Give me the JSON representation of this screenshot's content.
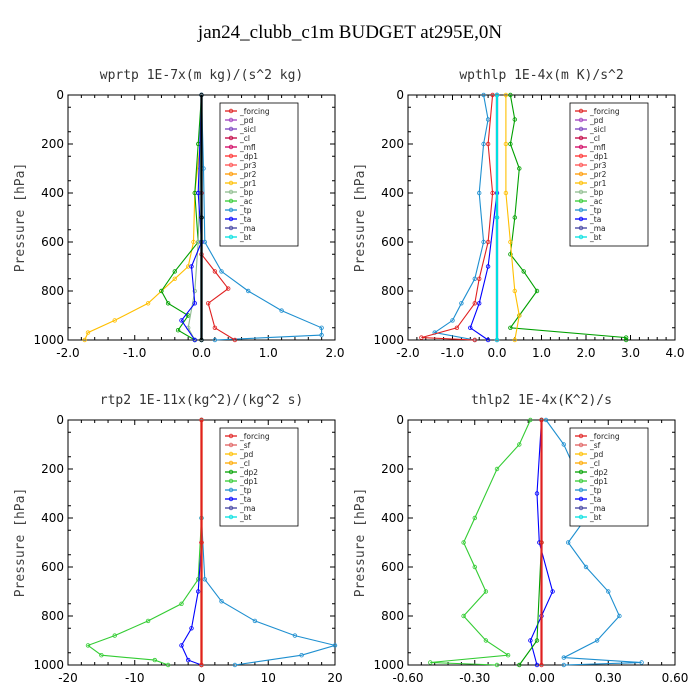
{
  "figure_title": "jan24_clubb_c1m  BUDGET at295E,0N",
  "chart_data": [
    {
      "type": "line",
      "title": "wprtp  1E-7x(m kg)/(s^2 kg)",
      "ylabel": "Pressure [hPa]",
      "xlabel": "",
      "xlim": [
        -2.0,
        2.0
      ],
      "ylim": [
        1000,
        0
      ],
      "xticks": [
        "-2.0",
        "-1.0",
        "0.0",
        "1.0",
        "2.0"
      ],
      "yticks": [
        "0",
        "200",
        "400",
        "600",
        "800",
        "1000"
      ],
      "legend": [
        "_forcing",
        "_pd",
        "_sicl",
        "_cl",
        "_mfl",
        "_dp1",
        "_pr3",
        "_pr2",
        "_pr1",
        "_bp",
        "_ac",
        "_tp",
        "_ta",
        "_ma",
        "_bt"
      ],
      "series": [
        {
          "name": "_pr1",
          "color": "#ffbf00",
          "points": [
            [
              0,
              0
            ],
            [
              -0.02,
              200
            ],
            [
              -0.1,
              400
            ],
            [
              -0.12,
              600
            ],
            [
              -0.2,
              700
            ],
            [
              -0.4,
              750
            ],
            [
              -0.8,
              850
            ],
            [
              -1.3,
              920
            ],
            [
              -1.7,
              970
            ],
            [
              -1.75,
              1000
            ]
          ]
        },
        {
          "name": "_ac",
          "color": "#00a000",
          "points": [
            [
              0,
              0
            ],
            [
              -0.05,
              200
            ],
            [
              -0.1,
              400
            ],
            [
              -0.05,
              600
            ],
            [
              -0.4,
              720
            ],
            [
              -0.6,
              800
            ],
            [
              -0.5,
              850
            ],
            [
              -0.2,
              900
            ],
            [
              -0.35,
              960
            ],
            [
              -0.1,
              1000
            ]
          ]
        },
        {
          "name": "_bp",
          "color": "#8fbc8f",
          "points": [
            [
              0,
              0
            ],
            [
              -0.02,
              300
            ],
            [
              -0.05,
              600
            ],
            [
              -0.1,
              800
            ],
            [
              -0.2,
              950
            ],
            [
              -0.1,
              1000
            ]
          ]
        },
        {
          "name": "_tp",
          "color": "#1e8fd0",
          "points": [
            [
              0,
              0
            ],
            [
              0.03,
              300
            ],
            [
              0.05,
              600
            ],
            [
              0.3,
              720
            ],
            [
              0.7,
              800
            ],
            [
              1.2,
              880
            ],
            [
              1.8,
              950
            ],
            [
              1.8,
              980
            ],
            [
              0.2,
              1000
            ]
          ]
        },
        {
          "name": "_dp1",
          "color": "#e02020",
          "points": [
            [
              0,
              0
            ],
            [
              0,
              400
            ],
            [
              0,
              650
            ],
            [
              0.2,
              720
            ],
            [
              0.4,
              790
            ],
            [
              0.1,
              850
            ],
            [
              0.2,
              950
            ],
            [
              0.5,
              1000
            ]
          ]
        },
        {
          "name": "_ta",
          "color": "#0000ff",
          "points": [
            [
              0,
              0
            ],
            [
              -0.05,
              400
            ],
            [
              0,
              600
            ],
            [
              -0.15,
              700
            ],
            [
              -0.1,
              850
            ],
            [
              -0.3,
              920
            ],
            [
              -0.1,
              1000
            ]
          ]
        },
        {
          "name": "_pd",
          "color": "#c0a0e0",
          "points": [
            [
              0,
              0
            ],
            [
              0,
              500
            ],
            [
              0,
              1000
            ]
          ]
        },
        {
          "name": "_bt",
          "color": "#00e0e0",
          "points": [
            [
              0,
              0
            ],
            [
              0,
              500
            ],
            [
              0,
              1000
            ]
          ]
        },
        {
          "name": "_forcing",
          "color": "#000000",
          "points": [
            [
              0,
              0
            ],
            [
              0,
              500
            ],
            [
              0,
              1000
            ]
          ]
        }
      ]
    },
    {
      "type": "line",
      "title": "wpthlp  1E-4x(m K)/s^2",
      "ylabel": "Pressure [hPa]",
      "xlabel": "",
      "xlim": [
        -2.0,
        4.0
      ],
      "ylim": [
        1000,
        0
      ],
      "xticks": [
        "-2.0",
        "-1.0",
        "0.0",
        "1.0",
        "2.0",
        "3.0",
        "4.0"
      ],
      "yticks": [
        "0",
        "200",
        "400",
        "600",
        "800",
        "1000"
      ],
      "legend": [
        "_forcing",
        "_pd",
        "_sicl",
        "_cl",
        "_mfl",
        "_dp1",
        "_pr3",
        "_pr2",
        "_pr1",
        "_bp",
        "_ac",
        "_tp",
        "_ta",
        "_ma",
        "_bt"
      ],
      "series": [
        {
          "name": "_tp",
          "color": "#1e8fd0",
          "points": [
            [
              -0.3,
              0
            ],
            [
              -0.2,
              100
            ],
            [
              -0.3,
              200
            ],
            [
              -0.4,
              400
            ],
            [
              -0.3,
              600
            ],
            [
              -0.5,
              750
            ],
            [
              -0.8,
              850
            ],
            [
              -1.0,
              920
            ],
            [
              -1.4,
              970
            ],
            [
              -0.5,
              1000
            ]
          ]
        },
        {
          "name": "_dp1",
          "color": "#e02020",
          "points": [
            [
              -0.1,
              0
            ],
            [
              -0.2,
              200
            ],
            [
              -0.1,
              400
            ],
            [
              -0.2,
              600
            ],
            [
              -0.4,
              750
            ],
            [
              -0.5,
              850
            ],
            [
              -0.9,
              950
            ],
            [
              -1.7,
              990
            ],
            [
              -0.5,
              1000
            ]
          ]
        },
        {
          "name": "_ac",
          "color": "#00a000",
          "points": [
            [
              0.3,
              0
            ],
            [
              0.4,
              100
            ],
            [
              0.3,
              200
            ],
            [
              0.5,
              300
            ],
            [
              0.4,
              500
            ],
            [
              0.3,
              650
            ],
            [
              0.6,
              720
            ],
            [
              0.9,
              800
            ],
            [
              0.5,
              900
            ],
            [
              0.3,
              950
            ],
            [
              2.9,
              990
            ],
            [
              2.9,
              1000
            ]
          ]
        },
        {
          "name": "_pr1",
          "color": "#ffbf00",
          "points": [
            [
              0.2,
              0
            ],
            [
              0.2,
              200
            ],
            [
              0.2,
              400
            ],
            [
              0.3,
              600
            ],
            [
              0.4,
              800
            ],
            [
              0.5,
              900
            ],
            [
              0.4,
              1000
            ]
          ]
        },
        {
          "name": "_ta",
          "color": "#0000ff",
          "points": [
            [
              0,
              0
            ],
            [
              0,
              400
            ],
            [
              -0.2,
              700
            ],
            [
              -0.4,
              850
            ],
            [
              -0.6,
              950
            ],
            [
              -0.2,
              1000
            ]
          ]
        },
        {
          "name": "_pd",
          "color": "#c0a0e0",
          "points": [
            [
              0,
              0
            ],
            [
              0,
              500
            ],
            [
              0,
              1000
            ]
          ]
        },
        {
          "name": "_forcing",
          "color": "#a040c0",
          "points": [
            [
              0,
              0
            ],
            [
              0,
              500
            ],
            [
              0,
              1000
            ]
          ]
        },
        {
          "name": "_bt",
          "color": "#00e0e0",
          "points": [
            [
              0,
              0
            ],
            [
              0,
              500
            ],
            [
              0,
              1000
            ]
          ]
        }
      ]
    },
    {
      "type": "line",
      "title": "rtp2  1E-11x(kg^2)/(kg^2 s)",
      "ylabel": "Pressure [hPa]",
      "xlabel": "",
      "xlim": [
        -20,
        20
      ],
      "ylim": [
        1000,
        0
      ],
      "xticks": [
        "-20",
        "-10",
        "0",
        "10",
        "20"
      ],
      "yticks": [
        "0",
        "200",
        "400",
        "600",
        "800",
        "1000"
      ],
      "legend": [
        "_forcing",
        "_sf",
        "_pd",
        "_cl",
        "_dp2",
        "_dp1",
        "_tp",
        "_ta",
        "_ma",
        "_bt"
      ],
      "series": [
        {
          "name": "_dp1",
          "color": "#33cc33",
          "points": [
            [
              0,
              0
            ],
            [
              0,
              400
            ],
            [
              -0.5,
              650
            ],
            [
              -3,
              750
            ],
            [
              -8,
              820
            ],
            [
              -13,
              880
            ],
            [
              -17,
              920
            ],
            [
              -15,
              960
            ],
            [
              -7,
              980
            ],
            [
              -5,
              1000
            ]
          ]
        },
        {
          "name": "_tp",
          "color": "#1e8fd0",
          "points": [
            [
              0,
              0
            ],
            [
              0,
              400
            ],
            [
              0.5,
              650
            ],
            [
              3,
              740
            ],
            [
              8,
              820
            ],
            [
              14,
              880
            ],
            [
              20,
              920
            ],
            [
              15,
              960
            ],
            [
              5,
              1000
            ]
          ]
        },
        {
          "name": "_ta",
          "color": "#0000ff",
          "points": [
            [
              0,
              0
            ],
            [
              0,
              500
            ],
            [
              -0.5,
              700
            ],
            [
              -1.5,
              850
            ],
            [
              -3,
              920
            ],
            [
              -2,
              980
            ],
            [
              0,
              1000
            ]
          ]
        },
        {
          "name": "_pd",
          "color": "#ffbf00",
          "points": [
            [
              0,
              0
            ],
            [
              0,
              500
            ],
            [
              0,
              1000
            ]
          ]
        },
        {
          "name": "_forcing",
          "color": "#e02020",
          "points": [
            [
              0,
              0
            ],
            [
              0,
              500
            ],
            [
              0,
              1000
            ]
          ]
        }
      ]
    },
    {
      "type": "line",
      "title": "thlp2  1E-4x(K^2)/s",
      "ylabel": "Pressure [hPa]",
      "xlabel": "",
      "xlim": [
        -0.6,
        0.6
      ],
      "ylim": [
        1000,
        0
      ],
      "xticks": [
        "-0.60",
        "-0.30",
        "0.00",
        "0.30",
        "0.60"
      ],
      "yticks": [
        "0",
        "200",
        "400",
        "600",
        "800",
        "1000"
      ],
      "legend": [
        "_forcing",
        "_sf",
        "_pd",
        "_cl",
        "_dp2",
        "_dp1",
        "_tp",
        "_ta",
        "_ma",
        "_bt"
      ],
      "series": [
        {
          "name": "_dp1",
          "color": "#33cc33",
          "points": [
            [
              -0.05,
              0
            ],
            [
              -0.1,
              100
            ],
            [
              -0.2,
              200
            ],
            [
              -0.3,
              400
            ],
            [
              -0.35,
              500
            ],
            [
              -0.3,
              600
            ],
            [
              -0.25,
              700
            ],
            [
              -0.35,
              800
            ],
            [
              -0.25,
              900
            ],
            [
              -0.15,
              960
            ],
            [
              -0.5,
              990
            ],
            [
              -0.2,
              1000
            ]
          ]
        },
        {
          "name": "_tp",
          "color": "#1e8fd0",
          "points": [
            [
              0.02,
              0
            ],
            [
              0.1,
              100
            ],
            [
              0.15,
              200
            ],
            [
              0.2,
              400
            ],
            [
              0.12,
              500
            ],
            [
              0.2,
              600
            ],
            [
              0.3,
              700
            ],
            [
              0.35,
              800
            ],
            [
              0.25,
              900
            ],
            [
              0.1,
              970
            ],
            [
              0.45,
              990
            ],
            [
              0.1,
              1000
            ]
          ]
        },
        {
          "name": "_ta",
          "color": "#0000ff",
          "points": [
            [
              0,
              0
            ],
            [
              -0.02,
              300
            ],
            [
              -0.01,
              500
            ],
            [
              0.05,
              700
            ],
            [
              0.0,
              800
            ],
            [
              -0.05,
              900
            ],
            [
              -0.02,
              1000
            ]
          ]
        },
        {
          "name": "_dp2",
          "color": "#00a000",
          "points": [
            [
              0,
              0
            ],
            [
              0,
              500
            ],
            [
              -0.02,
              900
            ],
            [
              -0.1,
              1000
            ]
          ]
        },
        {
          "name": "_forcing",
          "color": "#e02020",
          "points": [
            [
              0,
              0
            ],
            [
              0,
              500
            ],
            [
              0,
              1000
            ]
          ]
        }
      ]
    }
  ]
}
